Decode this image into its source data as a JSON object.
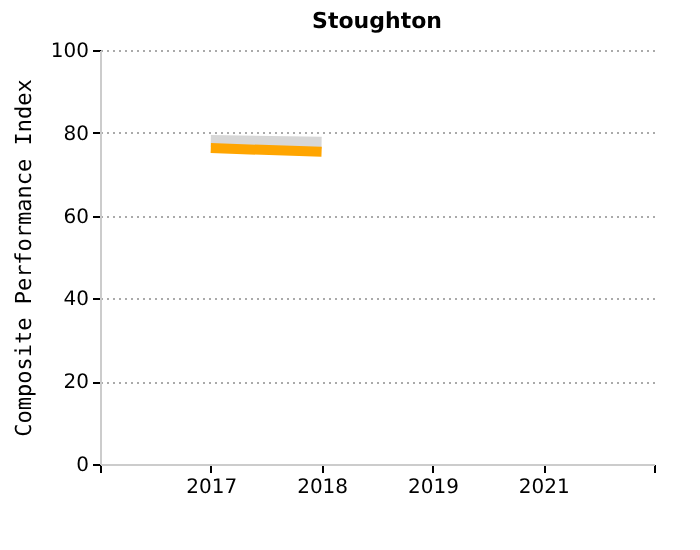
{
  "chart_data": {
    "type": "line",
    "title": "Stoughton",
    "ylabel": "Composite Performance Index",
    "categories": [
      "2017",
      "2018",
      "2019",
      "2021"
    ],
    "series": [
      {
        "color": "#d3d3d3",
        "values": [
          78,
          77.6,
          null,
          null
        ]
      },
      {
        "color": "#ffa500",
        "values": [
          76.3,
          75.4,
          null,
          null
        ]
      }
    ],
    "ylim": [
      0,
      100
    ],
    "yticks": [
      0,
      20,
      40,
      60,
      80,
      100
    ],
    "grid": "y",
    "marker": "none",
    "line_style": "solid"
  }
}
